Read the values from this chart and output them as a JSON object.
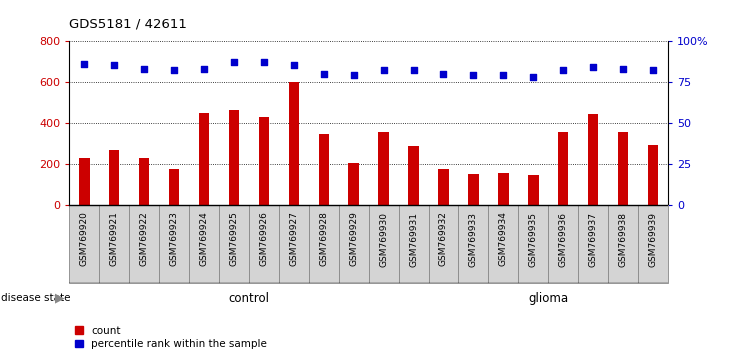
{
  "title": "GDS5181 / 42611",
  "samples": [
    "GSM769920",
    "GSM769921",
    "GSM769922",
    "GSM769923",
    "GSM769924",
    "GSM769925",
    "GSM769926",
    "GSM769927",
    "GSM769928",
    "GSM769929",
    "GSM769930",
    "GSM769931",
    "GSM769932",
    "GSM769933",
    "GSM769934",
    "GSM769935",
    "GSM769936",
    "GSM769937",
    "GSM769938",
    "GSM769939"
  ],
  "counts": [
    230,
    270,
    230,
    175,
    450,
    465,
    430,
    600,
    345,
    205,
    355,
    290,
    175,
    150,
    155,
    145,
    355,
    445,
    355,
    295
  ],
  "percentiles": [
    86,
    85,
    83,
    82,
    83,
    87,
    87,
    85,
    80,
    79,
    82,
    82,
    80,
    79,
    79,
    78,
    82,
    84,
    83,
    82
  ],
  "control_count": 12,
  "glioma_count": 8,
  "bar_color": "#cc0000",
  "dot_color": "#0000cc",
  "control_bg": "#ccffcc",
  "glioma_bg": "#55ee55",
  "xtick_bg": "#d4d4d4",
  "control_label": "control",
  "glioma_label": "glioma",
  "disease_state_label": "disease state",
  "ylim_left": [
    0,
    800
  ],
  "ylim_right": [
    0,
    100
  ],
  "yticks_left": [
    0,
    200,
    400,
    600,
    800
  ],
  "yticks_right": [
    0,
    25,
    50,
    75,
    100
  ],
  "legend_count": "count",
  "legend_percentile": "percentile rank within the sample"
}
